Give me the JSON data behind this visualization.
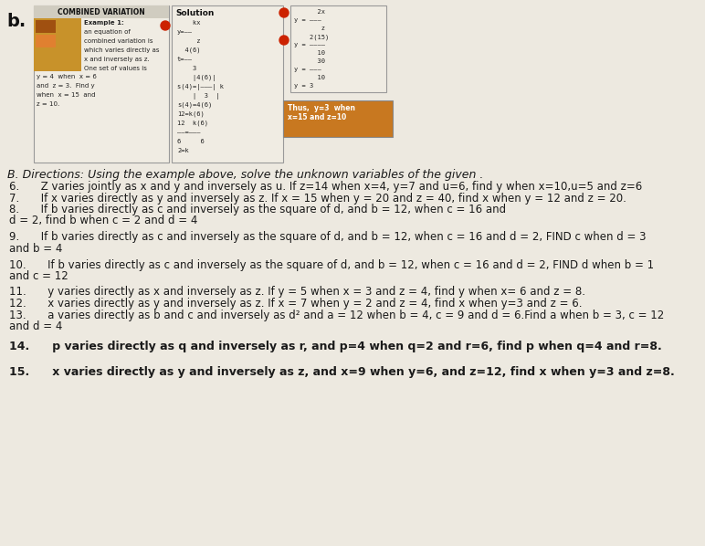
{
  "page_bg": "#ede9e0",
  "title_b": "b.",
  "box1_title": "COMBINED VARIATION",
  "box1_bg": "#f0ece3",
  "box1_border": "#aaaaaa",
  "thumb_color": "#c8922a",
  "example_lines": [
    "Example 1:",
    "an equation of",
    "combined variation is",
    "which varies directly as",
    "x and inversely as z.",
    "One set of values is",
    "y = 4  when  x = 6",
    "and  z = 3.  Find y",
    "when  x = 15  and",
    "z = 10."
  ],
  "sol_title": "Solution",
  "sol_box_bg": "#f0ece3",
  "sol_lines": [
    "    kx",
    "y=――",
    "     z",
    "  4(6)",
    "t=――",
    "    3",
    "    |4(6)|",
    "s(4)=|―――| k",
    "    |  3  |",
    "s(4)=4(6)",
    "12=k(6)",
    "12  k(6)",
    "――=―――",
    "6     6",
    "2=k"
  ],
  "bullet_color": "#cc2200",
  "right_box_bg": "#f0ece3",
  "right_lines": [
    "      2x",
    "y = ―――",
    "       z",
    "    2(15)",
    "y = ――――",
    "      10",
    "      30",
    "y = ―――",
    "      10",
    "y = 3"
  ],
  "thus_bg": "#c87820",
  "thus_text": "Thus,  y=3  when\nx=15 and z=10",
  "section_b": "B. Directions: Using the example above, solve the unknown variables of the given .",
  "p6a": "6.  Z varies jointly as x and y and inversely as u. If z=14 when x=4, y=7 and u=6, find y when x=10,u=5 and z=6",
  "p7a": "7.  If x varies directly as y and inversely as z. If x = 15 when y = 20 and z = 40, find x when y = 12 and z = 20.",
  "p8a": "8.  If b varies directly as c and inversely as the square of d, and b = 12, when c = 16 and",
  "p8b": "d = 2, find b when c = 2 and d = 4",
  "p9a": "9.  If b varies directly as c and inversely as the square of d, and b = 12, when c = 16 and d = 2, FIND c when d = 3",
  "p9b": "and b = 4",
  "p10a": "10.  If b varies directly as c and inversely as the square of d, and b = 12, when c = 16 and d = 2, FIND d when b = 1",
  "p10b": "and c = 12",
  "p11": "11.  y varies directly as x and inversely as z. If y = 5 when x = 3 and z = 4, find y when x= 6 and z = 8.",
  "p12": "12.  x varies directly as y and inversely as z. If x = 7 when y = 2 and z = 4, find x when y=3 and z = 6.",
  "p13a": "13.  a varies directly as b and c and inversely as d² and a = 12 when b = 4, c = 9 and d = 6.Find a when b = 3, c = 12",
  "p13b": "and d = 4",
  "p14": "14.  p varies directly as q and inversely as r, and p=4 when q=2 and r=6, find p when q=4 and r=8.",
  "p15": "15.  x varies directly as y and inversely as z, and x=9 when y=6, and z=12, find x when y=3 and z=8.",
  "text_color": "#1a1a1a"
}
